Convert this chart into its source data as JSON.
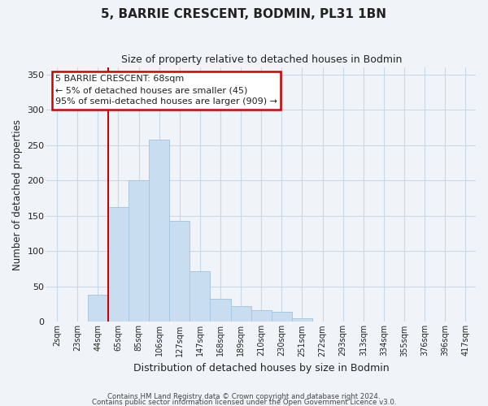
{
  "title": "5, BARRIE CRESCENT, BODMIN, PL31 1BN",
  "subtitle": "Size of property relative to detached houses in Bodmin",
  "xlabel": "Distribution of detached houses by size in Bodmin",
  "ylabel": "Number of detached properties",
  "bar_labels": [
    "2sqm",
    "23sqm",
    "44sqm",
    "65sqm",
    "85sqm",
    "106sqm",
    "127sqm",
    "147sqm",
    "168sqm",
    "189sqm",
    "210sqm",
    "230sqm",
    "251sqm",
    "272sqm",
    "293sqm",
    "313sqm",
    "334sqm",
    "355sqm",
    "376sqm",
    "396sqm",
    "417sqm"
  ],
  "bar_heights": [
    0,
    0,
    38,
    163,
    200,
    258,
    143,
    72,
    33,
    22,
    17,
    14,
    5,
    1,
    1,
    0,
    1,
    0,
    0,
    0,
    1
  ],
  "bar_color": "#c8ddef",
  "bar_edge_color": "#a8c8e0",
  "vline_x_index": 3,
  "vline_color": "#cc0000",
  "ylim": [
    0,
    360
  ],
  "yticks": [
    0,
    50,
    100,
    150,
    200,
    250,
    300,
    350
  ],
  "annotation_title": "5 BARRIE CRESCENT: 68sqm",
  "annotation_line1": "← 5% of detached houses are smaller (45)",
  "annotation_line2": "95% of semi-detached houses are larger (909) →",
  "annotation_box_color": "#ffffff",
  "annotation_box_edge_color": "#cc0000",
  "footer_line1": "Contains HM Land Registry data © Crown copyright and database right 2024.",
  "footer_line2": "Contains public sector information licensed under the Open Government Licence v3.0.",
  "background_color": "#f0f4f8",
  "grid_color": "#c8d8e8",
  "title_fontsize": 11,
  "subtitle_fontsize": 9
}
